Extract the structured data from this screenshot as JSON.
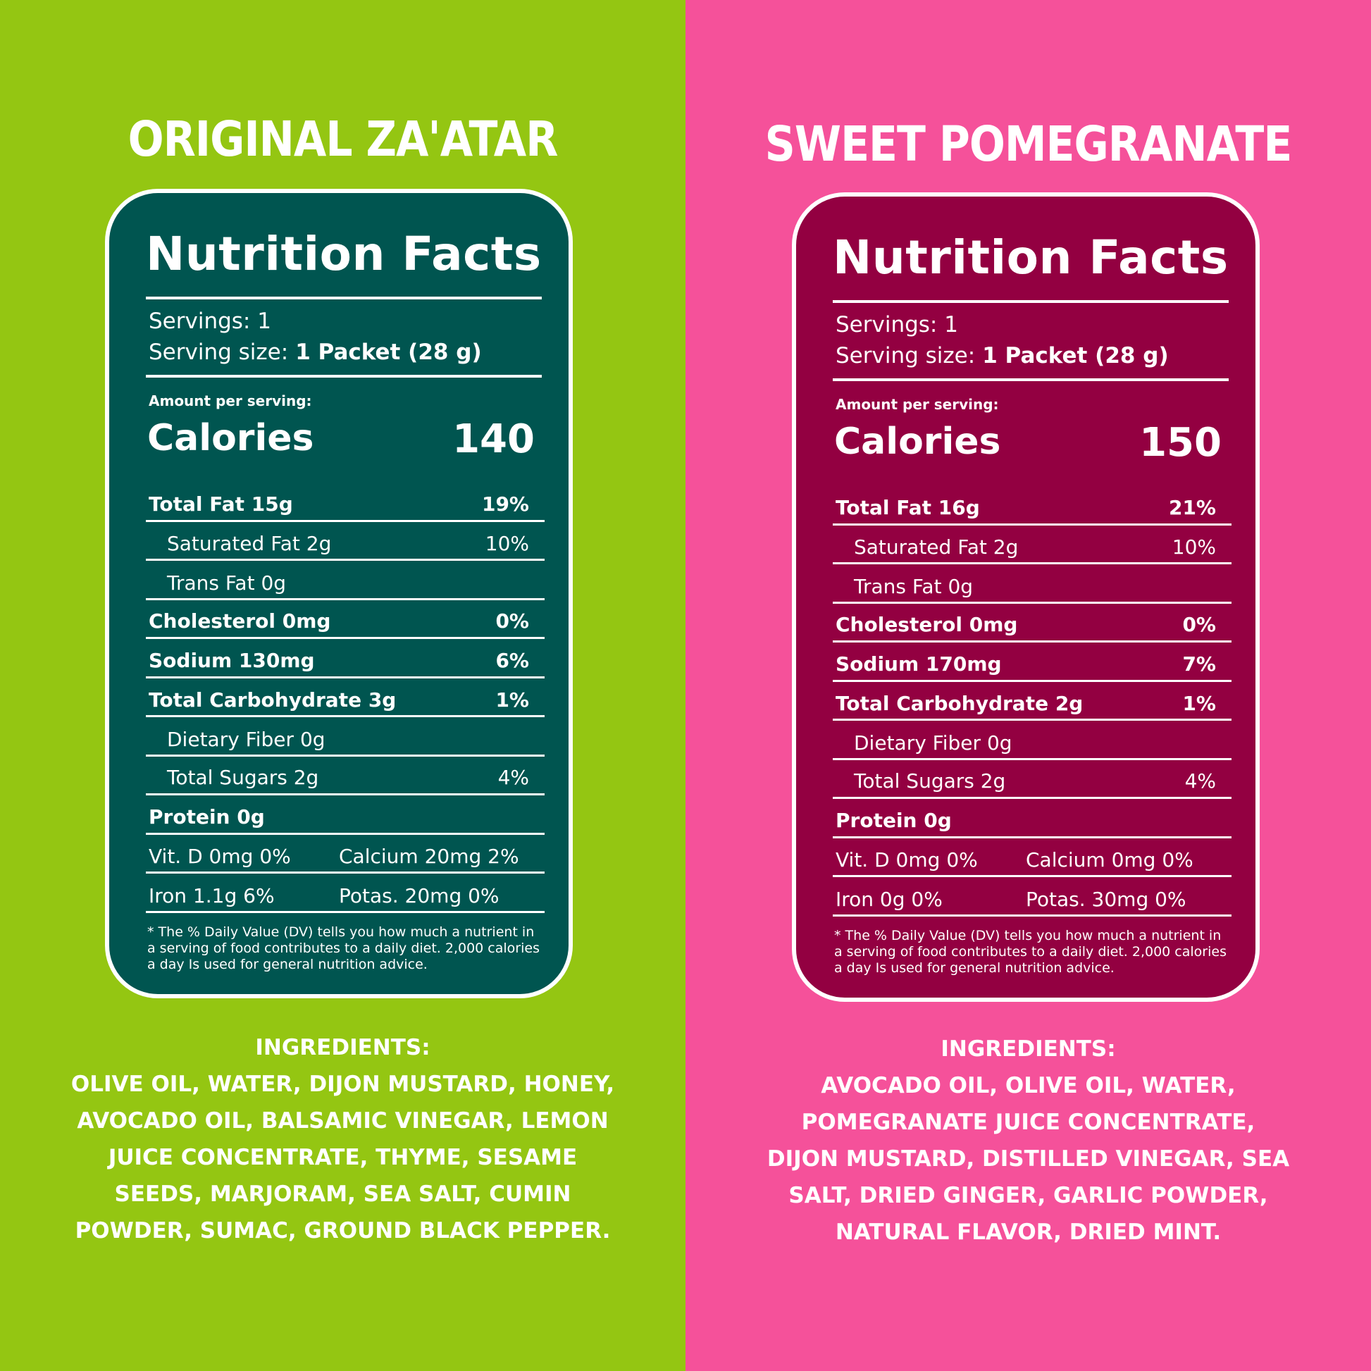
{
  "left": {
    "colors": {
      "background": "#94c612",
      "panel": "#005550"
    },
    "flavor": "ORIGINAL ZA'ATAR",
    "nf_title": "Nutrition Facts",
    "servings": "Servings: 1",
    "serving_size_label": "Serving size:",
    "serving_size_value": "1 Packet (28 g)",
    "amount_per_serving": "Amount per serving:",
    "calories_label": "Calories",
    "calories_value": "140",
    "rows": {
      "total_fat": {
        "label": "Total Fat 15g",
        "dv": "19%"
      },
      "sat_fat": {
        "label": "Saturated Fat 2g",
        "dv": "10%"
      },
      "trans_fat": {
        "label": "Trans Fat 0g"
      },
      "cholesterol": {
        "label": "Cholesterol 0mg",
        "dv": "0%"
      },
      "sodium": {
        "label": "Sodium 130mg",
        "dv": "6%"
      },
      "carb": {
        "label": "Total Carbohydrate 3g",
        "dv": "1%"
      },
      "fiber": {
        "label": "Dietary Fiber 0g"
      },
      "sugars": {
        "label": "Total Sugars 2g",
        "dv": "4%"
      },
      "protein": {
        "label": "Protein 0g"
      }
    },
    "vitd": "Vit. D 0mg 0%",
    "calcium": "Calcium 20mg 2%",
    "iron": "Iron 1.1g 6%",
    "potas": "Potas. 20mg 0%",
    "footnote": "* The % Daily Value (DV) tells you how much a nutrient in a serving of food contributes to a daily diet. 2,000 calories a day Is used for general nutrition advice.",
    "ingredients_title": "INGREDIENTS:",
    "ingredients_lines": [
      "OLIVE OIL, WATER, DIJON MUSTARD, HONEY,",
      "AVOCADO OIL, BALSAMIC VINEGAR, LEMON",
      "JUICE CONCENTRATE, THYME, SESAME",
      "SEEDS, MARJORAM, SEA SALT, CUMIN",
      "POWDER, SUMAC, GROUND BLACK PEPPER."
    ]
  },
  "right": {
    "colors": {
      "background": "#f5519a",
      "panel": "#930041"
    },
    "flavor": "SWEET POMEGRANATE",
    "nf_title": "Nutrition Facts",
    "servings": "Servings: 1",
    "serving_size_label": "Serving size:",
    "serving_size_value": "1 Packet (28 g)",
    "amount_per_serving": "Amount per serving:",
    "calories_label": "Calories",
    "calories_value": "150",
    "rows": {
      "total_fat": {
        "label": "Total Fat 16g",
        "dv": "21%"
      },
      "sat_fat": {
        "label": "Saturated Fat 2g",
        "dv": "10%"
      },
      "trans_fat": {
        "label": "Trans Fat 0g"
      },
      "cholesterol": {
        "label": "Cholesterol 0mg",
        "dv": "0%"
      },
      "sodium": {
        "label": "Sodium 170mg",
        "dv": "7%"
      },
      "carb": {
        "label": "Total Carbohydrate 2g",
        "dv": "1%"
      },
      "fiber": {
        "label": "Dietary Fiber 0g"
      },
      "sugars": {
        "label": "Total Sugars 2g",
        "dv": "4%"
      },
      "protein": {
        "label": "Protein 0g"
      }
    },
    "vitd": "Vit. D 0mg 0%",
    "calcium": "Calcium 0mg 0%",
    "iron": "Iron 0g 0%",
    "potas": "Potas. 30mg 0%",
    "footnote": "* The % Daily Value (DV) tells you how much a nutrient in a serving of food contributes to a daily diet. 2,000 calories a day Is used for general nutrition advice.",
    "ingredients_title": "INGREDIENTS:",
    "ingredients_lines": [
      "AVOCADO OIL, OLIVE OIL, WATER,",
      "POMEGRANATE JUICE CONCENTRATE,",
      "DIJON MUSTARD, DISTILLED VINEGAR, SEA",
      "SALT, DRIED GINGER, GARLIC POWDER,",
      "NATURAL FLAVOR, DRIED MINT."
    ]
  }
}
